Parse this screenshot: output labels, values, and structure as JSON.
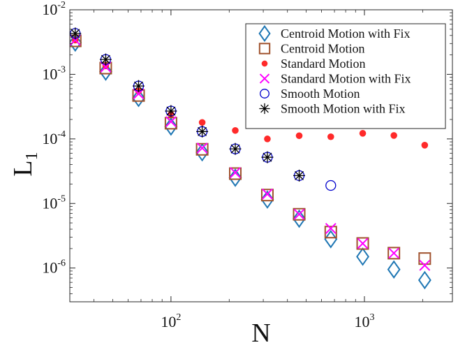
{
  "chart_data": {
    "type": "scatter",
    "xscale": "log",
    "yscale": "log",
    "xlim": [
      30,
      2850
    ],
    "ylim": [
      3e-07,
      0.01
    ],
    "xlabel": "N",
    "ylabel": "L1",
    "ylabel_main": "L",
    "ylabel_sub": "1",
    "grid": false,
    "legend_position": "top-right",
    "x_ticks": [
      {
        "value": 100,
        "base": "10",
        "exponent": "2"
      },
      {
        "value": 1000,
        "base": "10",
        "exponent": "3"
      }
    ],
    "y_ticks": [
      {
        "value": 0.01,
        "base": "10",
        "exponent": "-2"
      },
      {
        "value": 0.001,
        "base": "10",
        "exponent": "-3"
      },
      {
        "value": 0.0001,
        "base": "10",
        "exponent": "-4"
      },
      {
        "value": 1e-05,
        "base": "10",
        "exponent": "-5"
      },
      {
        "value": 1e-06,
        "base": "10",
        "exponent": "-6"
      }
    ],
    "series": [
      {
        "name": "Centroid Motion with Fix",
        "marker": "diamond",
        "color": "#1f77b4",
        "points": [
          {
            "x": 32,
            "y": 0.0031
          },
          {
            "x": 46,
            "y": 0.0011
          },
          {
            "x": 68,
            "y": 0.00043
          },
          {
            "x": 100,
            "y": 0.000155
          },
          {
            "x": 145,
            "y": 6.2e-05
          },
          {
            "x": 215,
            "y": 2.5e-05
          },
          {
            "x": 315,
            "y": 1.15e-05
          },
          {
            "x": 460,
            "y": 5.8e-06
          },
          {
            "x": 670,
            "y": 2.8e-06
          },
          {
            "x": 980,
            "y": 1.5e-06
          },
          {
            "x": 1420,
            "y": 9.5e-07
          },
          {
            "x": 2050,
            "y": 6.5e-07
          }
        ]
      },
      {
        "name": "Centroid Motion",
        "marker": "square",
        "color": "#a0522d",
        "points": [
          {
            "x": 32,
            "y": 0.0033
          },
          {
            "x": 46,
            "y": 0.00125
          },
          {
            "x": 68,
            "y": 0.00047
          },
          {
            "x": 100,
            "y": 0.000175
          },
          {
            "x": 145,
            "y": 6.9e-05
          },
          {
            "x": 215,
            "y": 2.9e-05
          },
          {
            "x": 315,
            "y": 1.35e-05
          },
          {
            "x": 460,
            "y": 6.8e-06
          },
          {
            "x": 670,
            "y": 3.6e-06
          },
          {
            "x": 980,
            "y": 2.4e-06
          },
          {
            "x": 1420,
            "y": 1.7e-06
          },
          {
            "x": 2050,
            "y": 1.4e-06
          }
        ]
      },
      {
        "name": "Standard Motion",
        "marker": "dot",
        "color": "#ff2a2a",
        "points": [
          {
            "x": 32,
            "y": 0.0034
          },
          {
            "x": 46,
            "y": 0.00135
          },
          {
            "x": 68,
            "y": 0.00055
          },
          {
            "x": 100,
            "y": 0.00024
          },
          {
            "x": 145,
            "y": 0.00018
          },
          {
            "x": 215,
            "y": 0.000135
          },
          {
            "x": 315,
            "y": 0.0001
          },
          {
            "x": 460,
            "y": 0.000112
          },
          {
            "x": 670,
            "y": 0.000108
          },
          {
            "x": 980,
            "y": 0.000122
          },
          {
            "x": 1420,
            "y": 0.000113
          },
          {
            "x": 2050,
            "y": 8e-05
          }
        ]
      },
      {
        "name": "Standard Motion with Fix",
        "marker": "x",
        "color": "#ff00ff",
        "points": [
          {
            "x": 32,
            "y": 0.0034
          },
          {
            "x": 46,
            "y": 0.0013
          },
          {
            "x": 68,
            "y": 0.0005
          },
          {
            "x": 100,
            "y": 0.000185
          },
          {
            "x": 145,
            "y": 7.2e-05
          },
          {
            "x": 215,
            "y": 3e-05
          },
          {
            "x": 315,
            "y": 1.4e-05
          },
          {
            "x": 460,
            "y": 6.8e-06
          },
          {
            "x": 670,
            "y": 4.1e-06
          },
          {
            "x": 980,
            "y": 2.4e-06
          },
          {
            "x": 1420,
            "y": 1.7e-06
          },
          {
            "x": 2050,
            "y": 1.1e-06
          }
        ]
      },
      {
        "name": "Smooth Motion",
        "marker": "circle",
        "color": "#0000cc",
        "points": [
          {
            "x": 32,
            "y": 0.0043
          },
          {
            "x": 46,
            "y": 0.0017
          },
          {
            "x": 68,
            "y": 0.00066
          },
          {
            "x": 100,
            "y": 0.00027
          },
          {
            "x": 145,
            "y": 0.00013
          },
          {
            "x": 215,
            "y": 7e-05
          },
          {
            "x": 315,
            "y": 5.2e-05
          },
          {
            "x": 460,
            "y": 2.7e-05
          },
          {
            "x": 670,
            "y": 1.9e-05
          }
        ]
      },
      {
        "name": "Smooth Motion with Fix",
        "marker": "asterisk",
        "color": "#000000",
        "points": [
          {
            "x": 32,
            "y": 0.0043
          },
          {
            "x": 46,
            "y": 0.0017
          },
          {
            "x": 68,
            "y": 0.00066
          },
          {
            "x": 100,
            "y": 0.00027
          },
          {
            "x": 145,
            "y": 0.00013
          },
          {
            "x": 215,
            "y": 7e-05
          },
          {
            "x": 315,
            "y": 5.2e-05
          },
          {
            "x": 460,
            "y": 2.7e-05
          }
        ]
      }
    ]
  }
}
